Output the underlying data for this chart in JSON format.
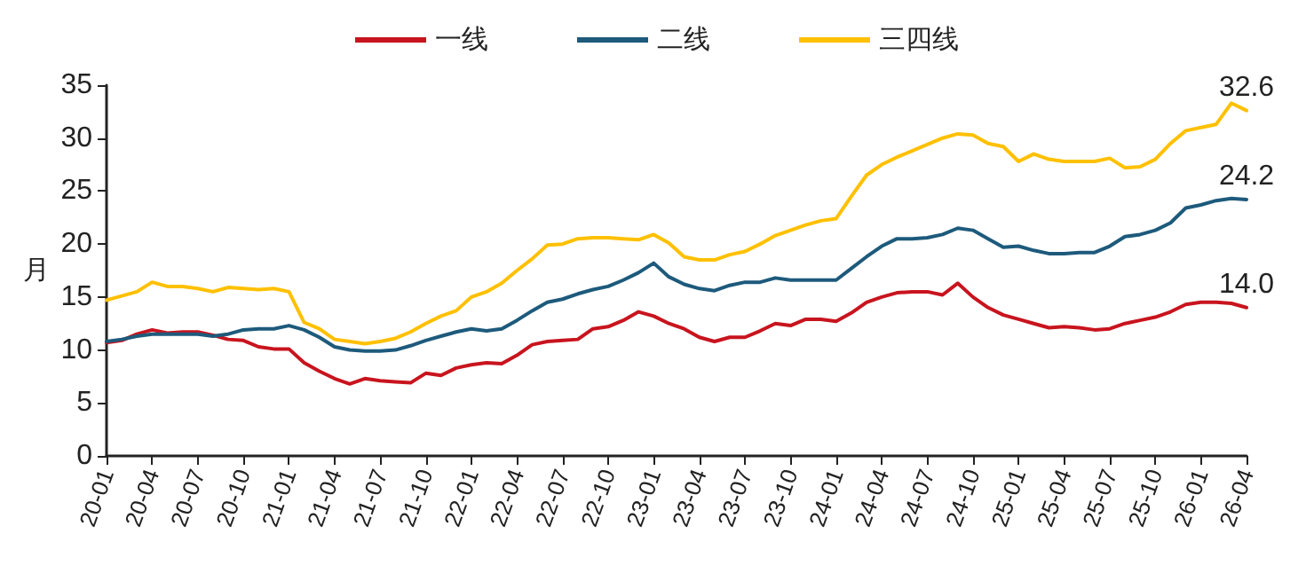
{
  "chart_data": {
    "type": "line",
    "ylabel": "月",
    "categories": [
      "20-01",
      null,
      null,
      "20-04",
      null,
      null,
      "20-07",
      null,
      null,
      "20-10",
      null,
      null,
      "21-01",
      null,
      null,
      "21-04",
      null,
      null,
      "21-07",
      null,
      null,
      "21-10",
      null,
      null,
      "22-01",
      null,
      null,
      "22-04",
      null,
      null,
      "22-07",
      null,
      null,
      "22-10",
      null,
      null,
      "23-01",
      null,
      null,
      "23-04",
      null,
      null,
      "23-07",
      null,
      null,
      "23-10",
      null,
      null,
      "24-01",
      null,
      null,
      "24-04",
      null,
      null,
      "24-07",
      null,
      null,
      "24-10",
      null,
      null,
      "25-01",
      null,
      null,
      "25-04",
      null,
      null,
      "25-07",
      null,
      null,
      "25-10",
      null,
      null,
      "26-01",
      null,
      null,
      "26-04"
    ],
    "series": [
      {
        "name": "一线",
        "color": "#c8141e",
        "values": [
          10.7,
          10.9,
          11.5,
          11.9,
          11.6,
          11.7,
          11.7,
          11.4,
          11.0,
          10.9,
          10.3,
          10.1,
          10.1,
          8.8,
          8.0,
          7.3,
          6.8,
          7.3,
          7.1,
          7.0,
          6.9,
          7.8,
          7.6,
          8.3,
          8.6,
          8.8,
          8.7,
          9.5,
          10.5,
          10.8,
          10.9,
          11.0,
          12.0,
          12.2,
          12.8,
          13.6,
          13.2,
          12.5,
          12.0,
          11.2,
          10.8,
          11.2,
          11.2,
          11.8,
          12.5,
          12.3,
          12.9,
          12.9,
          12.7,
          13.5,
          14.5,
          15.0,
          15.4,
          15.5,
          15.5,
          15.2,
          16.3,
          15.0,
          14.0,
          13.3,
          12.9,
          12.5,
          12.1,
          12.2,
          12.1,
          11.9,
          12.0,
          12.5,
          12.8,
          13.1,
          13.6,
          14.3,
          14.5,
          14.5,
          14.4,
          14.0
        ],
        "value_labels": [
          null,
          null,
          null,
          null,
          null,
          null,
          null,
          null,
          null,
          null,
          null,
          null,
          null,
          null,
          null,
          null,
          null,
          null,
          null,
          null,
          null,
          null,
          null,
          null,
          null,
          null,
          null,
          null,
          null,
          null,
          null,
          null,
          null,
          null,
          null,
          null,
          null,
          null,
          null,
          null,
          null,
          null,
          null,
          null,
          null,
          null,
          null,
          null,
          null,
          null,
          null,
          null,
          null,
          null,
          null,
          null,
          null,
          null,
          null,
          null,
          null,
          null,
          null,
          null,
          null,
          null,
          null,
          null,
          null,
          null,
          null,
          null,
          null,
          null,
          null,
          "14.0"
        ]
      },
      {
        "name": "二线",
        "color": "#1d5a7c",
        "values": [
          10.8,
          11.0,
          11.3,
          11.5,
          11.5,
          11.5,
          11.5,
          11.3,
          11.5,
          11.9,
          12.0,
          12.0,
          12.3,
          11.9,
          11.2,
          10.3,
          10.0,
          9.9,
          9.9,
          10.0,
          10.4,
          10.9,
          11.3,
          11.7,
          12.0,
          11.8,
          12.0,
          12.8,
          13.7,
          14.5,
          14.8,
          15.3,
          15.7,
          16.0,
          16.6,
          17.3,
          18.2,
          16.9,
          16.2,
          15.8,
          15.6,
          16.1,
          16.4,
          16.4,
          16.8,
          16.6,
          16.6,
          16.6,
          16.6,
          17.7,
          18.8,
          19.8,
          20.5,
          20.5,
          20.6,
          20.9,
          21.5,
          21.3,
          20.5,
          19.7,
          19.8,
          19.4,
          19.1,
          19.1,
          19.2,
          19.2,
          19.8,
          20.7,
          20.9,
          21.3,
          22.0,
          23.4,
          23.7,
          24.1,
          24.3,
          24.2
        ],
        "value_labels": [
          null,
          null,
          null,
          null,
          null,
          null,
          null,
          null,
          null,
          null,
          null,
          null,
          null,
          null,
          null,
          null,
          null,
          null,
          null,
          null,
          null,
          null,
          null,
          null,
          null,
          null,
          null,
          null,
          null,
          null,
          null,
          null,
          null,
          null,
          null,
          null,
          null,
          null,
          null,
          null,
          null,
          null,
          null,
          null,
          null,
          null,
          null,
          null,
          null,
          null,
          null,
          null,
          null,
          null,
          null,
          null,
          null,
          null,
          null,
          null,
          null,
          null,
          null,
          null,
          null,
          null,
          null,
          null,
          null,
          null,
          null,
          null,
          null,
          null,
          null,
          "24.2"
        ]
      },
      {
        "name": "三四线",
        "color": "#ffc000",
        "values": [
          14.7,
          15.1,
          15.5,
          16.4,
          16.0,
          16.0,
          15.8,
          15.5,
          15.9,
          15.8,
          15.7,
          15.8,
          15.5,
          12.6,
          12.0,
          11.0,
          10.8,
          10.6,
          10.8,
          11.1,
          11.7,
          12.5,
          13.2,
          13.7,
          15.0,
          15.5,
          16.3,
          17.5,
          18.6,
          19.9,
          20.0,
          20.5,
          20.6,
          20.6,
          20.5,
          20.4,
          20.9,
          20.1,
          18.8,
          18.5,
          18.5,
          19.0,
          19.3,
          20.0,
          20.8,
          21.3,
          21.8,
          22.2,
          22.4,
          24.5,
          26.5,
          27.5,
          28.2,
          28.8,
          29.4,
          30.0,
          30.4,
          30.3,
          29.5,
          29.2,
          27.8,
          28.5,
          28.0,
          27.8,
          27.8,
          27.8,
          28.1,
          27.2,
          27.3,
          28.0,
          29.5,
          30.7,
          31.0,
          31.3,
          33.3,
          32.6
        ],
        "value_labels": [
          null,
          null,
          null,
          null,
          null,
          null,
          null,
          null,
          null,
          null,
          null,
          null,
          null,
          null,
          null,
          null,
          null,
          null,
          null,
          null,
          null,
          null,
          null,
          null,
          null,
          null,
          null,
          null,
          null,
          null,
          null,
          null,
          null,
          null,
          null,
          null,
          null,
          null,
          null,
          null,
          null,
          null,
          null,
          null,
          null,
          null,
          null,
          null,
          null,
          null,
          null,
          null,
          null,
          null,
          null,
          null,
          null,
          null,
          null,
          null,
          null,
          null,
          null,
          null,
          null,
          null,
          null,
          null,
          null,
          null,
          null,
          null,
          null,
          null,
          null,
          "32.6"
        ]
      }
    ],
    "ylim": [
      0,
      35
    ],
    "yticks": [
      0,
      5,
      10,
      15,
      20,
      25,
      30,
      35
    ],
    "grid": false,
    "legend": "top",
    "line_style": "solid"
  }
}
